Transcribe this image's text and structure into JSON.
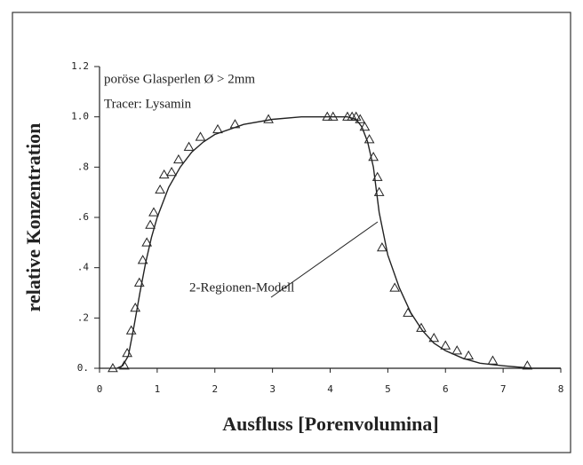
{
  "chart_data": {
    "type": "scatter",
    "xlabel": "Ausfluss [Porenvolumina]",
    "ylabel": "relative Konzentration",
    "annotations": [
      "poröse Glasperlen  Ø > 2mm",
      "Tracer: Lysamin",
      "2-Regionen-Modell"
    ],
    "xlim": [
      0,
      8
    ],
    "xticks": [
      0,
      1,
      2,
      3,
      4,
      5,
      6,
      7,
      8
    ],
    "ylim": [
      0,
      1.2
    ],
    "yticks": [
      {
        "value": 0,
        "label": "0."
      },
      {
        "value": 0.2,
        "label": ".2"
      },
      {
        "value": 0.4,
        "label": ".4"
      },
      {
        "value": 0.6,
        "label": ".6"
      },
      {
        "value": 0.8,
        "label": ".8"
      },
      {
        "value": 1,
        "label": "1.0"
      },
      1.2
    ],
    "series": [
      {
        "type": "scatter",
        "marker": "triangle",
        "color": "#222222",
        "x": [
          0.23,
          0.43,
          0.48,
          0.55,
          0.62,
          0.69,
          0.75,
          0.82,
          0.88,
          0.94,
          1.05,
          1.12,
          1.25,
          1.37,
          1.55,
          1.75,
          2.05,
          2.35,
          2.93,
          3.95,
          4.05,
          4.3,
          4.38,
          4.45,
          4.52,
          4.6,
          4.68,
          4.75,
          4.82,
          4.85,
          4.9,
          5.12,
          5.35,
          5.58,
          5.8,
          6.0,
          6.2,
          6.4,
          6.82,
          7.42
        ],
        "values": [
          0.0,
          0.01,
          0.06,
          0.15,
          0.24,
          0.34,
          0.43,
          0.5,
          0.57,
          0.62,
          0.71,
          0.77,
          0.78,
          0.83,
          0.88,
          0.92,
          0.95,
          0.97,
          0.99,
          1.0,
          1.0,
          1.0,
          1.0,
          1.0,
          0.99,
          0.96,
          0.91,
          0.84,
          0.76,
          0.7,
          0.48,
          0.32,
          0.22,
          0.16,
          0.12,
          0.09,
          0.07,
          0.05,
          0.03,
          0.01
        ]
      },
      {
        "type": "line",
        "color": "#222222",
        "x": [
          0.3,
          0.4,
          0.5,
          0.6,
          0.7,
          0.8,
          0.9,
          1.0,
          1.2,
          1.4,
          1.6,
          1.8,
          2.0,
          2.5,
          3.0,
          3.5,
          4.0,
          4.3,
          4.45,
          4.55,
          4.65,
          4.75,
          4.85,
          5.0,
          5.2,
          5.4,
          5.6,
          5.8,
          6.0,
          6.3,
          6.6,
          7.0,
          7.5,
          8.0
        ],
        "values": [
          0,
          0.01,
          0.05,
          0.17,
          0.3,
          0.42,
          0.52,
          0.6,
          0.72,
          0.8,
          0.86,
          0.9,
          0.93,
          0.97,
          0.99,
          1.0,
          1.0,
          1.0,
          0.99,
          0.96,
          0.9,
          0.8,
          0.62,
          0.45,
          0.32,
          0.22,
          0.15,
          0.1,
          0.07,
          0.04,
          0.02,
          0.01,
          0.0,
          0.0
        ]
      }
    ]
  }
}
